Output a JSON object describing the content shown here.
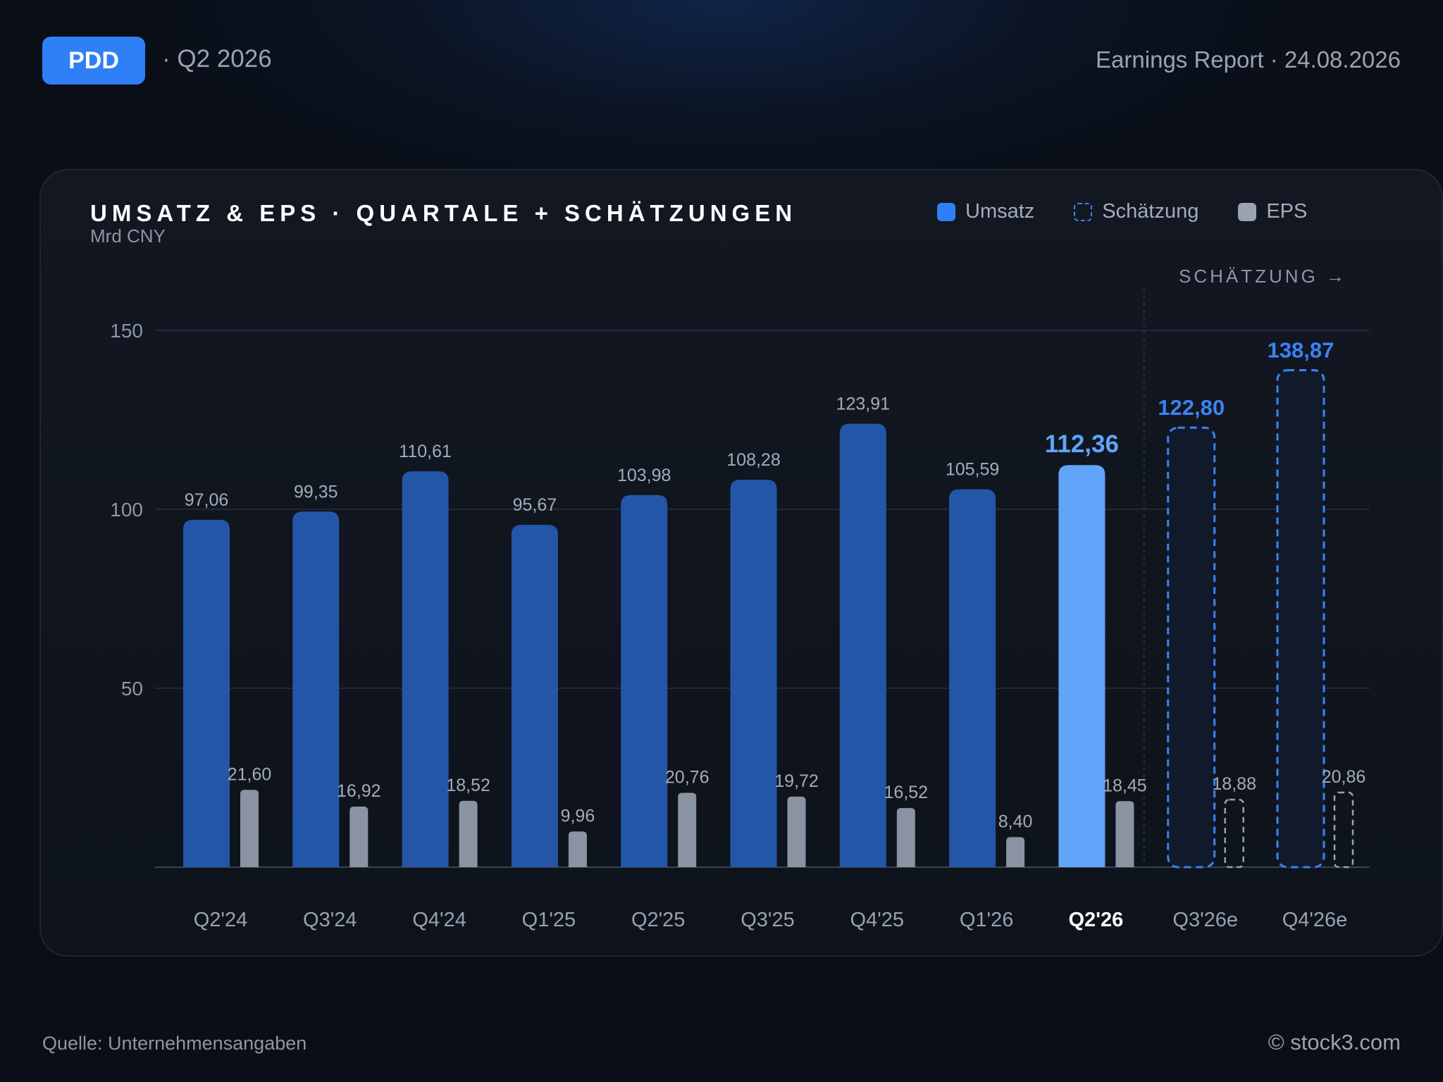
{
  "header": {
    "ticker": "PDD",
    "period": "· Q2 2026",
    "report": "Earnings Report · 24.08.2026"
  },
  "legend": {
    "revenue": "Umsatz",
    "estimate": "Schätzung",
    "eps": "EPS"
  },
  "footer": {
    "source": "Quelle: Unternehmensangaben",
    "brand": "© stock3.com"
  },
  "colors": {
    "revenue": "#2456a8",
    "current": "#60a5fa",
    "estimate": "#3b82f6",
    "eps": "#8a93a1"
  },
  "chart_data": {
    "type": "bar",
    "title": "UMSATZ & EPS · QUARTALE + SCHÄTZUNGEN",
    "subtitle": "Mrd CNY",
    "estimate_marker": "SCHÄTZUNG →",
    "categories": [
      "Q2'24",
      "Q3'24",
      "Q4'24",
      "Q1'25",
      "Q2'25",
      "Q3'25",
      "Q4'25",
      "Q1'26",
      "Q2'26",
      "Q3'26e",
      "Q4'26e"
    ],
    "current_index": 8,
    "estimate_from_index": 9,
    "ylim": [
      0,
      150
    ],
    "yticks": [
      50,
      100,
      150
    ],
    "series": [
      {
        "name": "Umsatz",
        "values": [
          97.06,
          99.35,
          110.61,
          95.67,
          103.98,
          108.28,
          123.91,
          105.59,
          112.36,
          122.8,
          138.87
        ],
        "labels": [
          "97,06",
          "99,35",
          "110,61",
          "95,67",
          "103,98",
          "108,28",
          "123,91",
          "105,59",
          "112,36",
          "122,80",
          "138,87"
        ]
      },
      {
        "name": "EPS",
        "values": [
          21.6,
          16.92,
          18.52,
          9.96,
          20.76,
          19.72,
          16.52,
          8.4,
          18.45,
          18.88,
          20.86
        ],
        "labels": [
          "21,60",
          "16,92",
          "18,52",
          "9,96",
          "20,76",
          "19,72",
          "16,52",
          "8,40",
          "18,45",
          "18,88",
          "20,86"
        ]
      }
    ],
    "grid": true,
    "legend_position": "top-right"
  }
}
